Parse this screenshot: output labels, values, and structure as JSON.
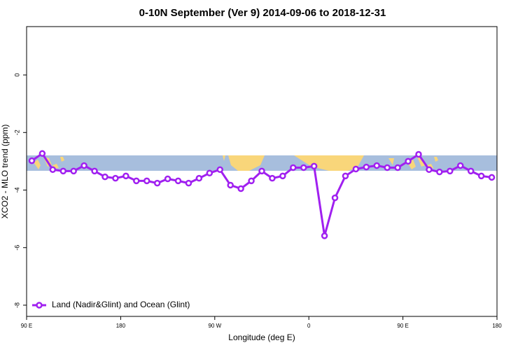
{
  "chart_data": {
    "type": "line",
    "title": "0-10N September (Ver 9)   2014-09-06 to 2018-12-31",
    "x_label": "Longitude (deg E)",
    "y_label": "XCO2 - MLO trend (ppm)",
    "x": [
      95,
      105,
      115,
      125,
      135,
      145,
      155,
      165,
      175,
      185,
      195,
      205,
      215,
      225,
      235,
      245,
      255,
      265,
      275,
      285,
      295,
      305,
      315,
      325,
      335,
      345,
      355,
      365,
      375,
      385,
      395,
      405,
      415,
      425,
      435,
      445,
      455,
      465,
      475,
      485,
      495,
      505,
      515,
      525,
      535
    ],
    "series": [
      {
        "name": "Land (Nadir&Glint) and Ocean (Glint)",
        "color": "#a020f0",
        "values": [
          -2.98,
          -2.73,
          -3.29,
          -3.34,
          -3.34,
          -3.15,
          -3.34,
          -3.54,
          -3.59,
          -3.51,
          -3.68,
          -3.68,
          -3.76,
          -3.61,
          -3.68,
          -3.76,
          -3.59,
          -3.41,
          -3.29,
          -3.83,
          -3.95,
          -3.68,
          -3.34,
          -3.59,
          -3.51,
          -3.22,
          -3.22,
          -3.17,
          -5.59,
          -4.27,
          -3.51,
          -3.27,
          -3.2,
          -3.15,
          -3.22,
          -3.22,
          -3.0,
          -2.76,
          -3.29,
          -3.37,
          -3.34,
          -3.15,
          -3.34,
          -3.51,
          -3.56
        ]
      }
    ],
    "xlim": [
      90,
      540
    ],
    "xticks": [
      {
        "value": 90,
        "label": "90 E"
      },
      180,
      {
        "value": 270,
        "label": "90 W"
      },
      {
        "value": 360,
        "label": "0"
      },
      {
        "value": 450,
        "label": "90 E"
      },
      {
        "value": 540,
        "label": "180"
      }
    ],
    "ylim": [
      -8.39,
      1.68
    ],
    "yticks": [
      0,
      -2,
      -4,
      -6,
      -8
    ],
    "legend": "bottom-left"
  }
}
